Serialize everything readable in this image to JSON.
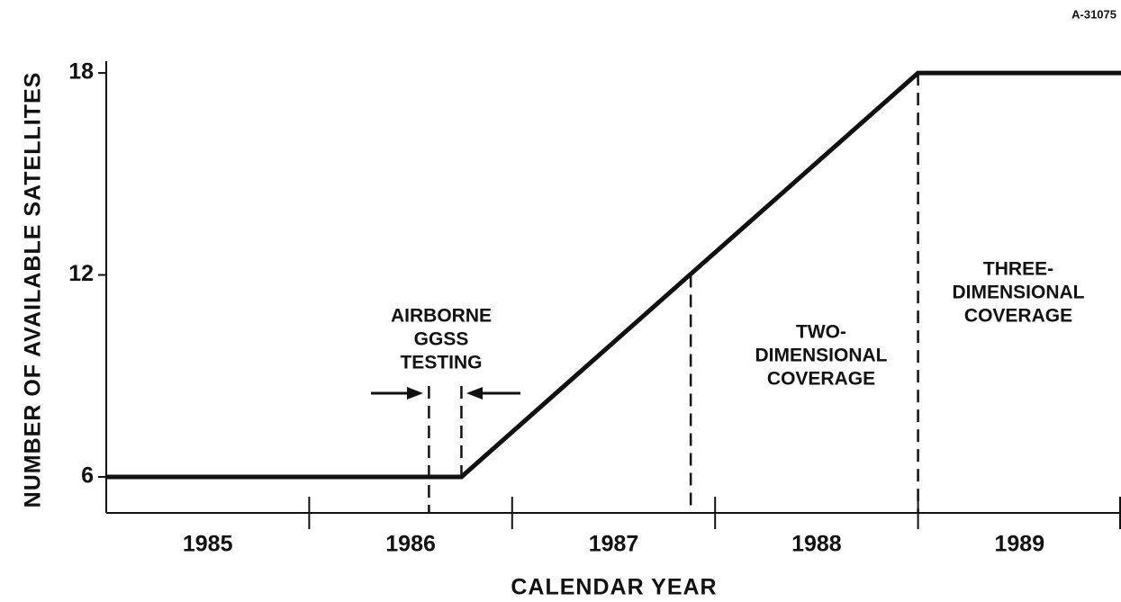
{
  "chart_data": {
    "type": "line",
    "figure_id": "A-31075",
    "ylabel": "NUMBER OF AVAILABLE SATELLITES",
    "xlabel": "CALENDAR YEAR",
    "x": [
      1985,
      1986.75,
      1989,
      1990
    ],
    "series": [
      {
        "name": "Available satellites",
        "color": "#111111",
        "values": [
          6,
          6,
          18,
          18
        ]
      }
    ],
    "xlim": [
      1985,
      1990
    ],
    "xticks": [
      1986,
      1987,
      1988,
      1989,
      1990
    ],
    "year_bands": [
      1985,
      1986,
      1987,
      1988,
      1989
    ],
    "ylim": [
      4.93,
      18.35
    ],
    "yticks": [
      6,
      12,
      18
    ],
    "markers": [
      {
        "x": 1986.59,
        "y_top": 8.7,
        "y_bottom": 4.93
      },
      {
        "x": 1986.75,
        "y_top": 8.7,
        "y_bottom": 6
      },
      {
        "x": 1987.88,
        "y_top": 12,
        "y_bottom": 4.93
      },
      {
        "x": 1989,
        "y_top": 18,
        "y_bottom": 4.93
      }
    ],
    "annotations": [
      {
        "lines": [
          "AIRBORNE",
          "GGSS",
          "TESTING"
        ]
      },
      {
        "lines": [
          "TWO-",
          "DIMENSIONAL",
          "COVERAGE"
        ]
      },
      {
        "lines": [
          "THREE-",
          "DIMENSIONAL",
          "COVERAGE"
        ]
      }
    ]
  }
}
